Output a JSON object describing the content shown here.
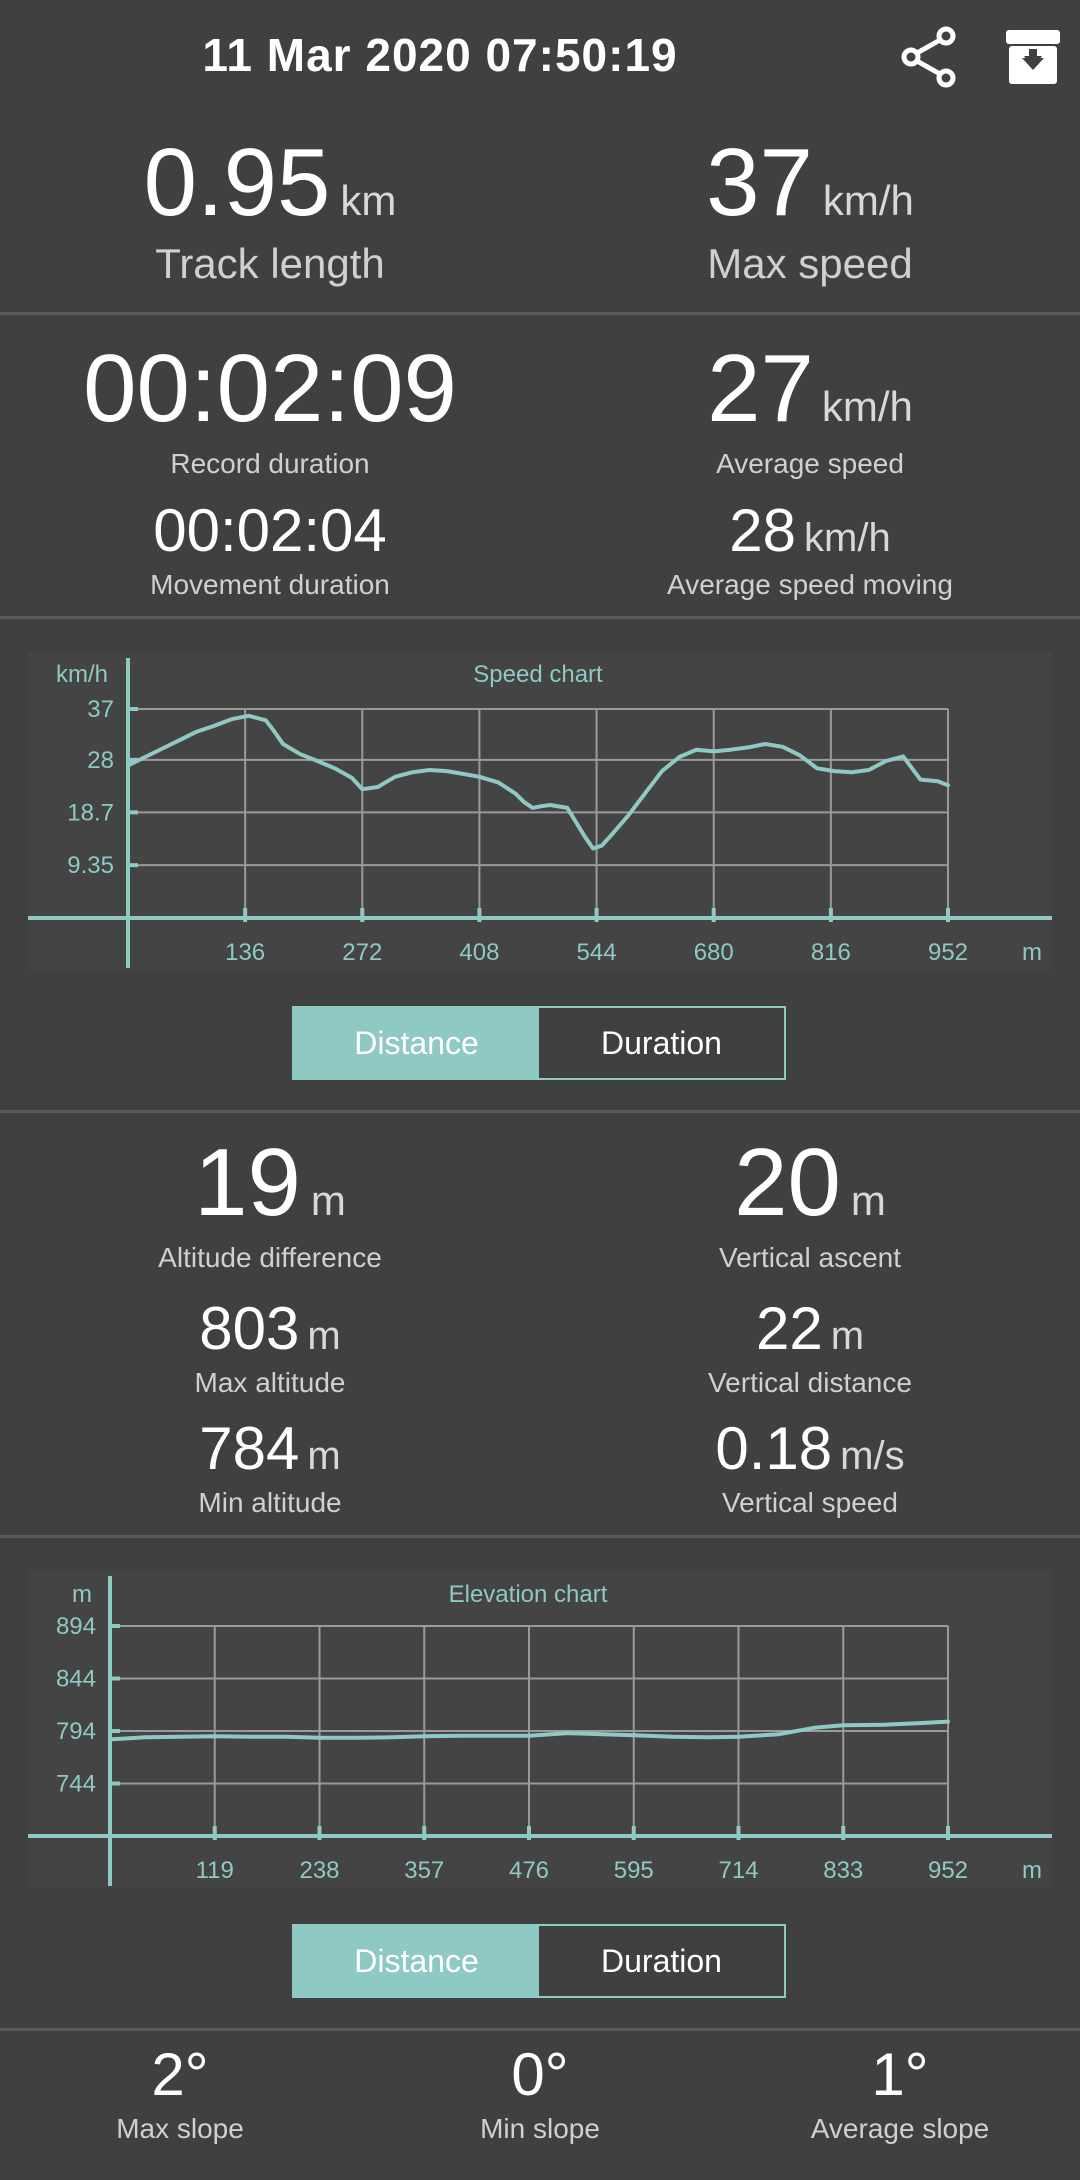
{
  "header": {
    "title": "11 Mar 2020 07:50:19",
    "share_icon": "share-icon",
    "archive_icon": "archive-download-icon"
  },
  "summary": {
    "track_length": {
      "value": "0.95",
      "unit": "km",
      "label": "Track length"
    },
    "max_speed": {
      "value": "37",
      "unit": "km/h",
      "label": "Max speed"
    }
  },
  "durations": {
    "record_duration": {
      "value": "00:02:09",
      "label": "Record duration"
    },
    "average_speed": {
      "value": "27",
      "unit": "km/h",
      "label": "Average speed"
    },
    "movement_duration": {
      "value": "00:02:04",
      "label": "Movement duration"
    },
    "average_speed_moving": {
      "value": "28",
      "unit": "km/h",
      "label": "Average speed moving"
    }
  },
  "speed_toggle": {
    "distance": "Distance",
    "duration": "Duration",
    "selected": "Distance"
  },
  "altitude": {
    "altitude_difference": {
      "value": "19",
      "unit": "m",
      "label": "Altitude difference"
    },
    "vertical_ascent": {
      "value": "20",
      "unit": "m",
      "label": "Vertical ascent"
    },
    "max_altitude": {
      "value": "803",
      "unit": "m",
      "label": "Max altitude"
    },
    "vertical_distance": {
      "value": "22",
      "unit": "m",
      "label": "Vertical distance"
    },
    "min_altitude": {
      "value": "784",
      "unit": "m",
      "label": "Min altitude"
    },
    "vertical_speed": {
      "value": "0.18",
      "unit": "m/s",
      "label": "Vertical speed"
    }
  },
  "elevation_toggle": {
    "distance": "Distance",
    "duration": "Duration",
    "selected": "Distance"
  },
  "slope": {
    "max_slope": {
      "value": "2°",
      "label": "Max slope"
    },
    "min_slope": {
      "value": "0°",
      "label": "Min slope"
    },
    "average_slope": {
      "value": "1°",
      "label": "Average slope"
    }
  },
  "colors": {
    "accent": "#8fc9c3",
    "background": "#404040",
    "grid": "#9a9a9a"
  },
  "chart_data": [
    {
      "type": "line",
      "title": "Speed chart",
      "ylabel": "km/h",
      "xlabel": "m",
      "ylim": [
        0,
        37
      ],
      "xlim": [
        0,
        952
      ],
      "y_ticks": [
        9.35,
        18.7,
        28,
        37
      ],
      "y_tick_labels": [
        "9.35",
        "18.7",
        "28",
        "37"
      ],
      "x_ticks": [
        136,
        272,
        408,
        544,
        680,
        816,
        952
      ],
      "x_tick_labels": [
        "136",
        "272",
        "408",
        "544",
        "680",
        "816",
        "952"
      ],
      "grid": true,
      "series": [
        {
          "x": [
            0,
            20,
            40,
            60,
            80,
            100,
            120,
            140,
            160,
            170,
            180,
            200,
            220,
            240,
            260,
            272,
            290,
            310,
            330,
            350,
            370,
            390,
            408,
            430,
            450,
            460,
            470,
            480,
            490,
            510,
            520,
            530,
            540,
            550,
            560,
            580,
            600,
            620,
            640,
            660,
            680,
            700,
            720,
            740,
            760,
            780,
            800,
            820,
            840,
            860,
            880,
            900,
            920,
            940,
            952
          ],
          "y": [
            27,
            28.5,
            30,
            31.5,
            33,
            34,
            35.2,
            35.8,
            35,
            33,
            30.8,
            29,
            27.8,
            26.5,
            24.8,
            22.8,
            23.2,
            25,
            25.8,
            26.2,
            26,
            25.5,
            25,
            24,
            22,
            20.5,
            19.5,
            19.8,
            20,
            19.5,
            17,
            14.5,
            12.3,
            12.8,
            14.5,
            18,
            22,
            26,
            28.5,
            29.8,
            29.5,
            29.8,
            30.2,
            30.8,
            30.3,
            28.8,
            26.5,
            26,
            25.8,
            26.2,
            27.8,
            28.6,
            24.5,
            24.2,
            23.5
          ]
        }
      ]
    },
    {
      "type": "line",
      "title": "Elevation chart",
      "ylabel": "m",
      "xlabel": "m",
      "ylim": [
        694,
        894
      ],
      "xlim": [
        0,
        952
      ],
      "y_ticks": [
        744,
        794,
        844,
        894
      ],
      "y_tick_labels": [
        "744",
        "794",
        "844",
        "894"
      ],
      "x_ticks": [
        119,
        238,
        357,
        476,
        595,
        714,
        833,
        952
      ],
      "x_tick_labels": [
        "119",
        "238",
        "357",
        "476",
        "595",
        "714",
        "833",
        "952"
      ],
      "grid": true,
      "series": [
        {
          "x": [
            0,
            40,
            80,
            119,
            160,
            200,
            238,
            280,
            320,
            357,
            400,
            440,
            476,
            520,
            560,
            595,
            640,
            680,
            714,
            760,
            800,
            833,
            880,
            920,
            952
          ],
          "y": [
            786,
            788,
            788.5,
            789,
            788.5,
            788.5,
            787.5,
            787.5,
            788,
            789,
            789.5,
            789.5,
            789.5,
            792,
            791,
            790,
            788.5,
            788,
            788.5,
            791,
            797,
            799.5,
            800,
            801.5,
            803
          ]
        }
      ]
    }
  ]
}
